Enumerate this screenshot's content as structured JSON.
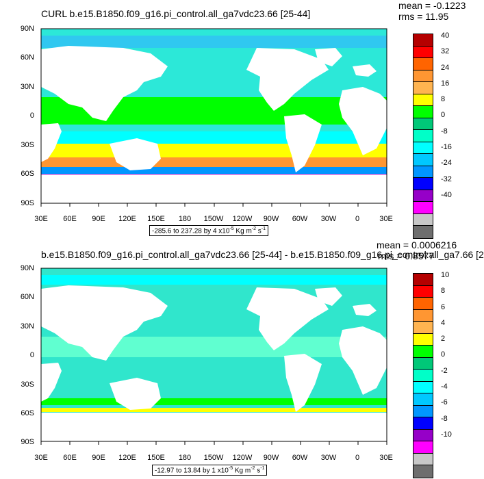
{
  "panels": [
    {
      "title": "CURL b.e15.B1850.f09_g16.pi_control.all_ga7vdc23.66 [25-44]",
      "mean": "mean = -0.1223",
      "rms": "rms = 11.95",
      "range_main": "-285.6 to 237.28 by 4 x10",
      "colorbar_labels": [
        "40",
        "32",
        "24",
        "16",
        "8",
        "0",
        "-8",
        "-16",
        "-24",
        "-32",
        "-40"
      ]
    },
    {
      "title": "b.e15.B1850.f09_g16.pi_control.all_ga7vdc23.66 [25-44] - b.e15.B1850.f09_g16.pi_control.all_ga7.66 [2",
      "mean": "mean = 0.0006216",
      "rms": "rms = 0.8577",
      "range_main": "-12.97 to 13.84 by 1 x10",
      "colorbar_labels": [
        "10",
        "8",
        "6",
        "4",
        "2",
        "0",
        "-2",
        "-4",
        "-6",
        "-8",
        "-10"
      ]
    }
  ],
  "range_units": {
    "exp": "-5",
    "unit": " Kg m",
    "exp2": "-2",
    "unit2": " s",
    "exp3": "-1"
  },
  "lat_labels": [
    "90N",
    "60N",
    "30N",
    "0",
    "30S",
    "60S",
    "90S"
  ],
  "lon_labels": [
    "30E",
    "60E",
    "90E",
    "120E",
    "150E",
    "180",
    "150W",
    "120W",
    "90W",
    "60W",
    "30W",
    "0",
    "30E"
  ],
  "colors": {
    "colorbar": [
      "#b50000",
      "#ff0000",
      "#ff6400",
      "#ff9632",
      "#ffb450",
      "#ffff00",
      "#00ff00",
      "#00c878",
      "#00ffc8",
      "#00ffff",
      "#00c8ff",
      "#0096ff",
      "#0000ff",
      "#9600c8",
      "#ff00ff",
      "#c8c8c8",
      "#6e6e6e"
    ],
    "ocean_mean_p1": "#2ce8d8",
    "ocean_mean_p2": "#30e6cc",
    "land": "#ffffff"
  }
}
